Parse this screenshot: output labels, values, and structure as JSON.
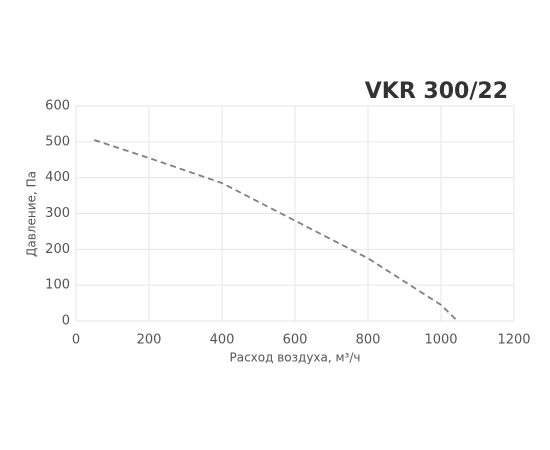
{
  "chart_data": {
    "type": "line",
    "title": "VKR 300/22",
    "x_label": "Расход воздуха, м³/ч",
    "y_label": "Давление, Па",
    "x": [
      50,
      200,
      400,
      600,
      800,
      1000,
      1045
    ],
    "series": [
      {
        "color": "#808080",
        "dash": true,
        "values": [
          505,
          455,
          385,
          280,
          175,
          45,
          0
        ]
      }
    ],
    "xlim": [
      0,
      1200
    ],
    "xticks": [
      0,
      200,
      400,
      600,
      800,
      1000,
      1200
    ],
    "ylim": [
      0,
      600
    ],
    "yticks": [
      0,
      100,
      200,
      300,
      400,
      500,
      600
    ],
    "grid": true
  }
}
